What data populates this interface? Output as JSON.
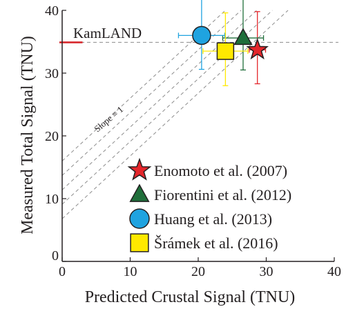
{
  "chart_data": {
    "type": "scatter",
    "xlabel": "Predicted Crustal Signal (TNU)",
    "ylabel": "Measured Total Signal (TNU)",
    "xlim": [
      0,
      40
    ],
    "ylim": [
      0,
      40
    ],
    "xticks": [
      0,
      10,
      20,
      30,
      40
    ],
    "yticks": [
      0,
      10,
      20,
      30,
      40
    ],
    "grid": false,
    "legend_position": "bottom-right",
    "reference_line": {
      "label": "KamLAND",
      "y": 34.9,
      "color": "#d7262b"
    },
    "slope_lines": {
      "annotation": "Slope ≡ 1",
      "slope": 1,
      "intercepts": [
        6.8,
        9.1,
        11.4,
        13.7,
        16.0
      ]
    },
    "series": [
      {
        "name": "Enomoto et al. (2007)",
        "marker": "star",
        "color": "#e4262b",
        "x": 28.7,
        "y": 33.7,
        "x_err": 1.2,
        "y_err_low": 5.4,
        "y_err_high": 6.1
      },
      {
        "name": "Fiorentini et al. (2012)",
        "marker": "triangle",
        "color": "#1f6e3a",
        "x": 26.6,
        "y": 35.6,
        "x_err": 3.0,
        "y_err_low": 5.1,
        "y_err_high": 6.7
      },
      {
        "name": "Huang et al. (2013)",
        "marker": "circle",
        "color": "#1fa3e0",
        "x": 20.5,
        "y": 36.0,
        "x_err": 3.4,
        "y_err_low": 5.4,
        "y_err_high": 6.0
      },
      {
        "name": "Šrámek et al. (2016)",
        "marker": "square",
        "color": "#ffe900",
        "x": 24.0,
        "y": 33.5,
        "x_err": 3.3,
        "y_err_low": 5.5,
        "y_err_high": 6.1
      }
    ]
  }
}
